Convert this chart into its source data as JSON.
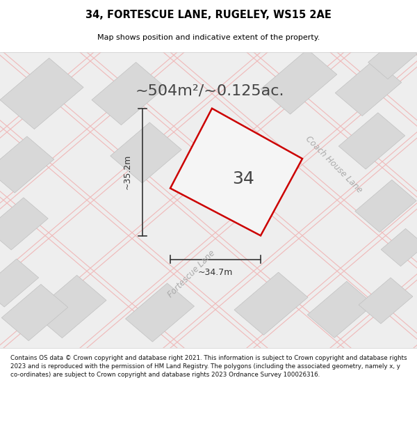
{
  "title": "34, FORTESCUE LANE, RUGELEY, WS15 2AE",
  "subtitle": "Map shows position and indicative extent of the property.",
  "area_text": "~504m²/~0.125ac.",
  "label_34": "34",
  "dim_width": "~34.7m",
  "dim_height": "~35.2m",
  "road_label_fortescue": "Fortescue Lane",
  "road_label_coach": "Coach House Lane",
  "footer": "Contains OS data © Crown copyright and database right 2021. This information is subject to Crown copyright and database rights 2023 and is reproduced with the permission of HM Land Registry. The polygons (including the associated geometry, namely x, y co-ordinates) are subject to Crown copyright and database rights 2023 Ordnance Survey 100026316.",
  "map_bg": "#eeeeee",
  "building_color": "#d8d8d8",
  "building_edge": "#c0c0c0",
  "plot_edge_color": "#cc0000",
  "plot_fill_color": "#f5f5f5",
  "road_line_color": "#f0b8b8",
  "road_line_color2": "#e8a0a0",
  "dim_line_color": "#333333",
  "title_color": "#000000",
  "label_color": "#444444",
  "road_label_color": "#aaaaaa",
  "footer_color": "#111111"
}
